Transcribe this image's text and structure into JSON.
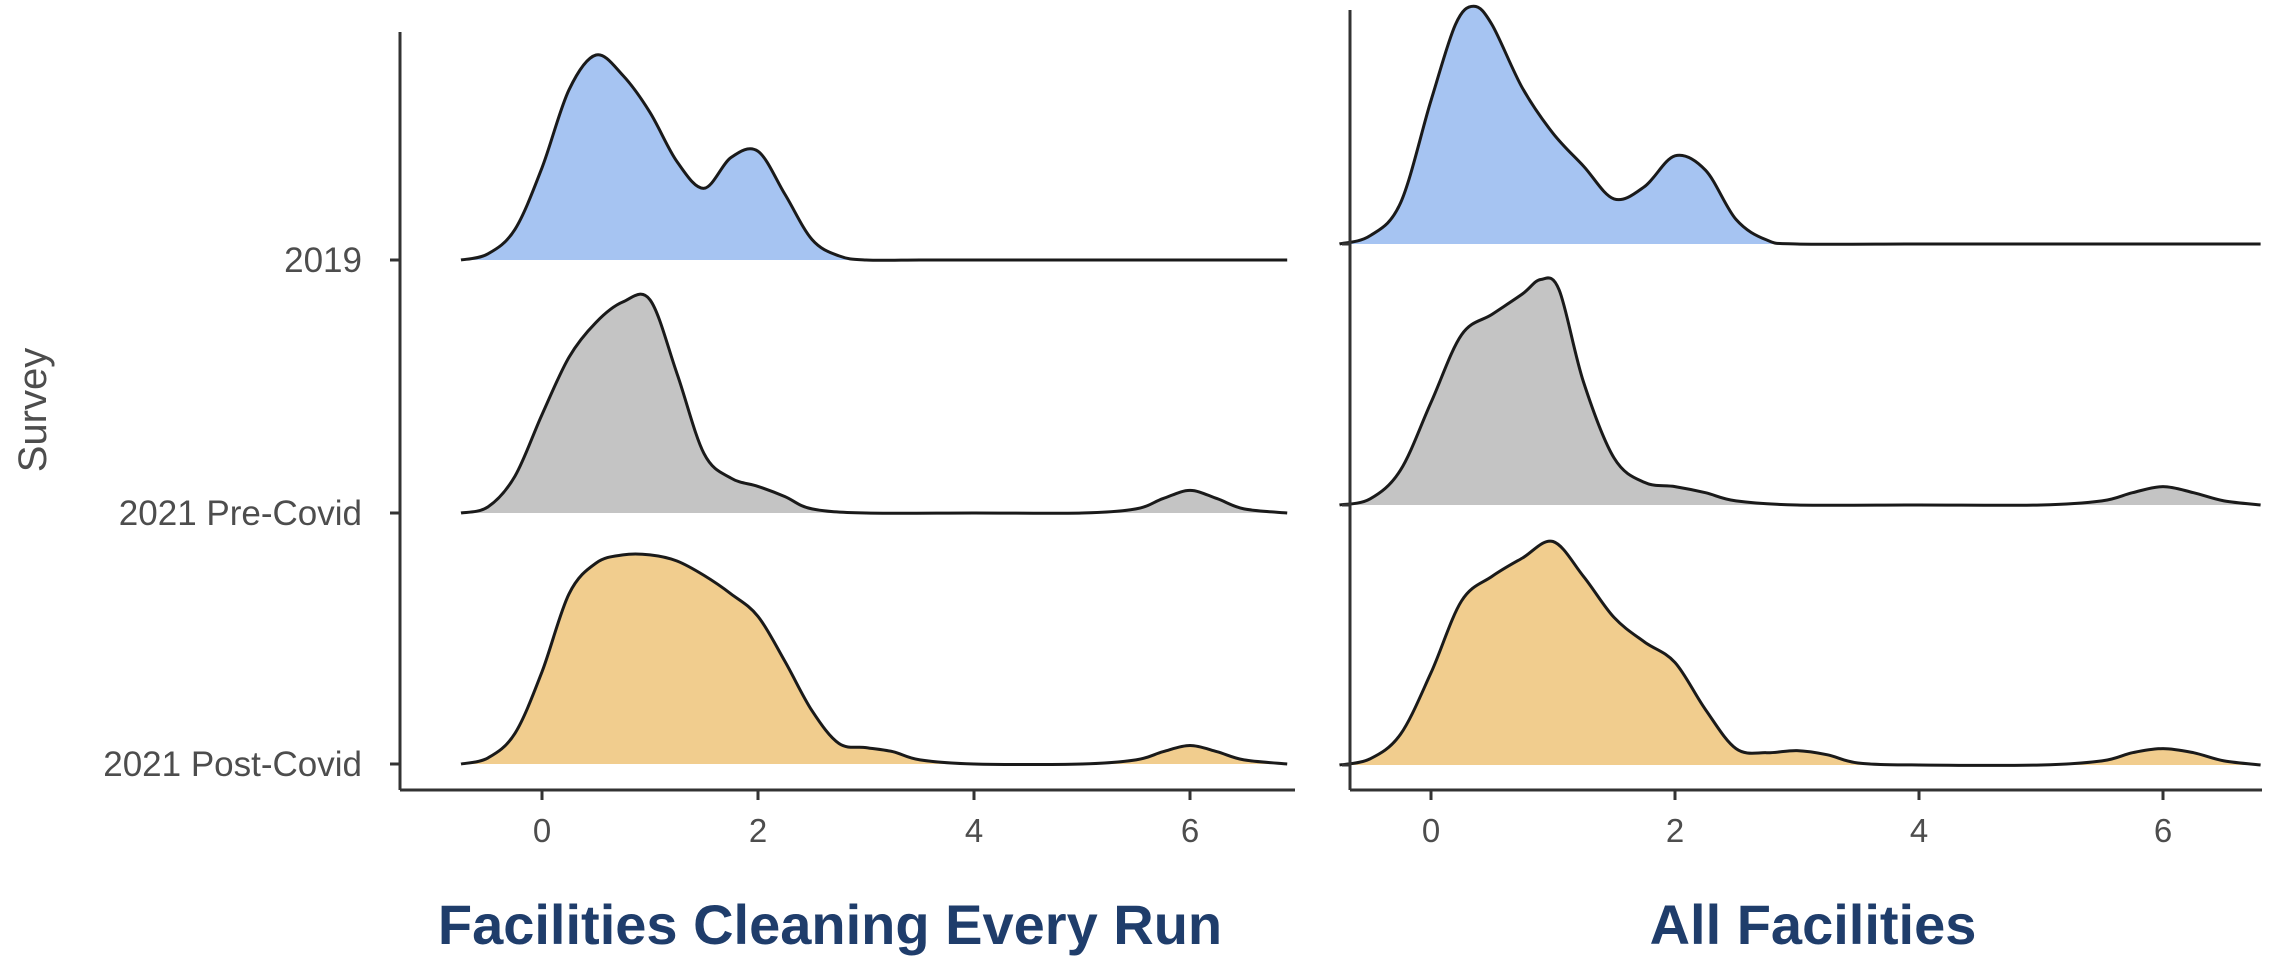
{
  "chart_data": [
    {
      "type": "ridgeline",
      "title": "Facilities Cleaning Every Run",
      "ylabel": "Survey",
      "xlabel": "",
      "xlim": [
        -0.8,
        6.9
      ],
      "xticks": [
        0,
        2,
        4,
        6
      ],
      "categories": [
        "2019",
        "2021 Pre-Covid",
        "2021 Post-Covid"
      ],
      "colors": [
        "#a6c4f2",
        "#c4c4c4",
        "#f1cd8e"
      ],
      "series": [
        {
          "category": "2019",
          "x": [
            -0.75,
            -0.5,
            -0.25,
            0,
            0.25,
            0.5,
            0.75,
            1.0,
            1.25,
            1.5,
            1.75,
            2.0,
            2.25,
            2.5,
            2.75,
            3.0,
            3.5,
            4,
            5,
            6,
            6.9
          ],
          "density": [
            0.0,
            0.03,
            0.15,
            0.45,
            0.83,
            1.0,
            0.9,
            0.72,
            0.48,
            0.35,
            0.5,
            0.53,
            0.32,
            0.1,
            0.02,
            0.0,
            0.0,
            0.0,
            0.0,
            0.0,
            0.0
          ]
        },
        {
          "category": "2021 Pre-Covid",
          "x": [
            -0.75,
            -0.5,
            -0.25,
            0,
            0.25,
            0.5,
            0.75,
            1.0,
            1.25,
            1.5,
            1.75,
            2.0,
            2.25,
            2.5,
            3.0,
            4.0,
            5.0,
            5.5,
            5.75,
            6.0,
            6.25,
            6.5,
            6.9
          ],
          "density": [
            0.0,
            0.03,
            0.18,
            0.48,
            0.76,
            0.93,
            1.03,
            1.04,
            0.68,
            0.29,
            0.17,
            0.13,
            0.08,
            0.02,
            0.0,
            0.0,
            0.0,
            0.02,
            0.07,
            0.11,
            0.07,
            0.02,
            0.0
          ]
        },
        {
          "category": "2021 Post-Covid",
          "x": [
            -0.75,
            -0.5,
            -0.25,
            0,
            0.25,
            0.5,
            0.75,
            1.0,
            1.25,
            1.5,
            1.75,
            2.0,
            2.25,
            2.5,
            2.75,
            3.0,
            3.25,
            3.5,
            4.0,
            5.0,
            5.5,
            5.75,
            6.0,
            6.25,
            6.5,
            6.9
          ],
          "density": [
            0.0,
            0.03,
            0.15,
            0.45,
            0.83,
            0.98,
            1.02,
            1.02,
            0.99,
            0.92,
            0.83,
            0.72,
            0.5,
            0.26,
            0.1,
            0.08,
            0.06,
            0.02,
            0.0,
            0.0,
            0.02,
            0.06,
            0.09,
            0.06,
            0.02,
            0.0
          ]
        }
      ]
    },
    {
      "type": "ridgeline",
      "title": "All Facilities",
      "ylabel": "",
      "xlabel": "",
      "xlim": [
        -0.85,
        6.8
      ],
      "xticks": [
        0,
        2,
        4,
        6
      ],
      "categories": [
        "2019",
        "2021 Pre-Covid",
        "2021 Post-Covid"
      ],
      "colors": [
        "#a6c4f2",
        "#c4c4c4",
        "#f1cd8e"
      ],
      "series": [
        {
          "category": "2019",
          "x": [
            -0.75,
            -0.5,
            -0.25,
            0,
            0.2,
            0.35,
            0.5,
            0.75,
            1.0,
            1.25,
            1.5,
            1.75,
            2.0,
            2.25,
            2.5,
            2.75,
            3.0,
            4,
            5,
            6,
            6.8
          ],
          "density": [
            0.0,
            0.04,
            0.2,
            0.7,
            1.07,
            1.16,
            1.07,
            0.76,
            0.54,
            0.38,
            0.22,
            0.28,
            0.43,
            0.36,
            0.12,
            0.02,
            0.0,
            0.0,
            0.0,
            0.0,
            0.0
          ]
        },
        {
          "category": "2021 Pre-Covid",
          "x": [
            -0.75,
            -0.5,
            -0.25,
            0,
            0.25,
            0.5,
            0.75,
            0.9,
            1.05,
            1.25,
            1.5,
            1.75,
            2.0,
            2.25,
            2.5,
            3.0,
            4.0,
            5.0,
            5.5,
            5.75,
            6.0,
            6.25,
            6.5,
            6.8
          ],
          "density": [
            0.0,
            0.03,
            0.17,
            0.5,
            0.83,
            0.93,
            1.03,
            1.1,
            1.05,
            0.6,
            0.23,
            0.11,
            0.09,
            0.06,
            0.02,
            0.0,
            0.0,
            0.0,
            0.02,
            0.06,
            0.09,
            0.06,
            0.02,
            0.0
          ]
        },
        {
          "category": "2021 Post-Covid",
          "x": [
            -0.75,
            -0.5,
            -0.25,
            0,
            0.25,
            0.5,
            0.75,
            1.0,
            1.25,
            1.5,
            1.75,
            2.0,
            2.25,
            2.5,
            2.75,
            3.0,
            3.25,
            3.5,
            4.0,
            5.0,
            5.5,
            5.75,
            6.0,
            6.25,
            6.5,
            6.8
          ],
          "density": [
            0.0,
            0.03,
            0.15,
            0.45,
            0.8,
            0.92,
            1.01,
            1.09,
            0.92,
            0.72,
            0.6,
            0.5,
            0.27,
            0.08,
            0.06,
            0.07,
            0.05,
            0.01,
            0.0,
            0.0,
            0.02,
            0.06,
            0.08,
            0.06,
            0.02,
            0.0
          ]
        }
      ]
    }
  ]
}
